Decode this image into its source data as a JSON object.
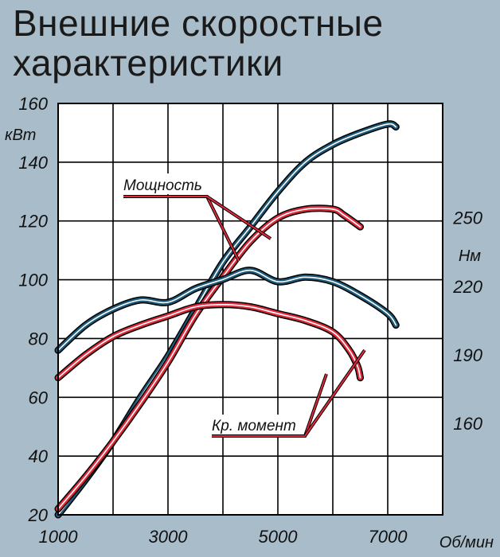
{
  "title_lines": [
    "Внешние скоростные",
    "характеристики"
  ],
  "chart_data": {
    "type": "line",
    "x_ticks": [
      "1000",
      "3000",
      "5000",
      "7000"
    ],
    "x_unit": "Об/мин",
    "xlim": [
      1000,
      8000
    ],
    "left_axis": {
      "unit": "кВт",
      "ticks": [
        "20",
        "40",
        "60",
        "80",
        "100",
        "120",
        "140",
        "160"
      ],
      "ylim": [
        20,
        160
      ]
    },
    "right_axis": {
      "unit": "Нм",
      "ticks": [
        "160",
        "190",
        "220",
        "250"
      ],
      "ylim": [
        120,
        300
      ]
    },
    "grid": true,
    "series": [
      {
        "name": "Мощность",
        "axis": "left",
        "color": "#1d5a7a",
        "x": [
          1000,
          1500,
          2000,
          2500,
          3000,
          3500,
          4000,
          4500,
          5000,
          5500,
          6000,
          6500,
          7000,
          7150
        ],
        "y": [
          20,
          32,
          45,
          60,
          74,
          90,
          106,
          118,
          130,
          140,
          146,
          150,
          153,
          152
        ]
      },
      {
        "name": "Мощность",
        "axis": "left",
        "color": "#e0293a",
        "x": [
          1000,
          1500,
          2000,
          2500,
          3000,
          3500,
          4000,
          4500,
          5000,
          5500,
          6000,
          6200,
          6500
        ],
        "y": [
          22,
          33,
          45,
          58,
          72,
          88,
          101,
          113,
          121,
          124,
          124,
          122,
          118
        ]
      },
      {
        "name": "Кр. момент",
        "axis": "right",
        "color": "#1d5a7a",
        "x": [
          1000,
          1500,
          2000,
          2500,
          3000,
          3500,
          4000,
          4500,
          5000,
          5500,
          6000,
          6500,
          7000,
          7150
        ],
        "y": [
          192,
          203,
          210,
          214,
          213,
          219,
          223,
          227,
          222,
          224,
          222,
          216,
          208,
          203
        ]
      },
      {
        "name": "Кр. момент",
        "axis": "right",
        "color": "#e0293a",
        "x": [
          1000,
          1500,
          2000,
          2500,
          3000,
          3500,
          4000,
          4500,
          5000,
          5500,
          6000,
          6300,
          6450,
          6500
        ],
        "y": [
          180,
          190,
          198,
          203,
          207,
          211,
          212,
          211,
          208,
          205,
          200,
          192,
          185,
          180
        ]
      }
    ],
    "annotations": [
      {
        "text": "Мощность",
        "target_series": [
          0,
          1
        ]
      },
      {
        "text": "Кр. момент",
        "target_series": [
          2,
          3
        ]
      }
    ]
  }
}
